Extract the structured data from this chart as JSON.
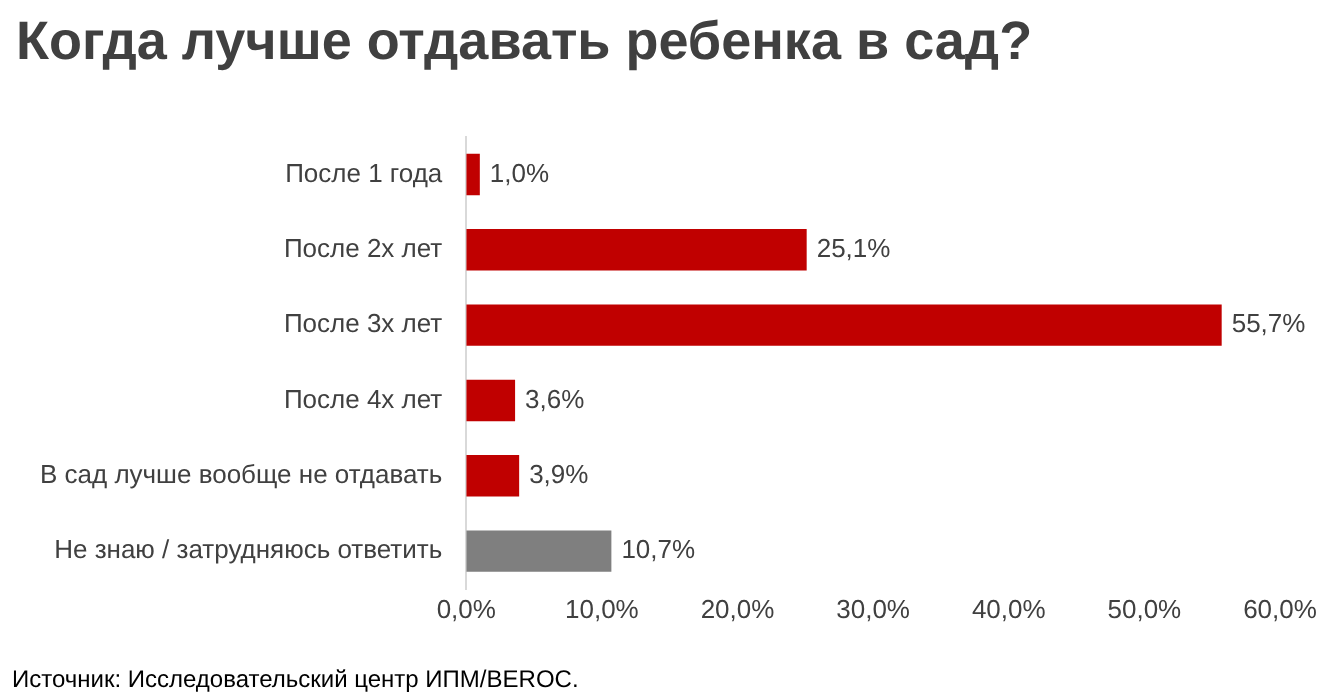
{
  "chart_data": {
    "type": "bar",
    "orientation": "horizontal",
    "title": "Когда лучше отдавать ребенка в сад?",
    "categories": [
      "После 1 года",
      "После 2х лет",
      "После 3х лет",
      "После 4х лет",
      "В сад лучше вообще не отдавать",
      "Не знаю / затрудняюсь ответить"
    ],
    "values": [
      1.0,
      25.1,
      55.7,
      3.6,
      3.9,
      10.7
    ],
    "colors": [
      "#c00000",
      "#c00000",
      "#c00000",
      "#c00000",
      "#c00000",
      "#7f7f7f"
    ],
    "value_labels": [
      "1,0%",
      "25,1%",
      "55,7%",
      "3,6%",
      "3,9%",
      "10,7%"
    ],
    "xlim": [
      0,
      60
    ],
    "xticks": [
      {
        "value": 0,
        "label": "0,0%"
      },
      {
        "value": 10,
        "label": "10,0%"
      },
      {
        "value": 20,
        "label": "20,0%"
      },
      {
        "value": 30,
        "label": "30,0%"
      },
      {
        "value": 40,
        "label": "40,0%"
      },
      {
        "value": 50,
        "label": "50,0%"
      },
      {
        "value": 60,
        "label": "60,0%"
      }
    ],
    "grid": false,
    "legend": false,
    "annotations": [
      "Источник: Исследовательский центр ИПМ/BEROC."
    ]
  }
}
